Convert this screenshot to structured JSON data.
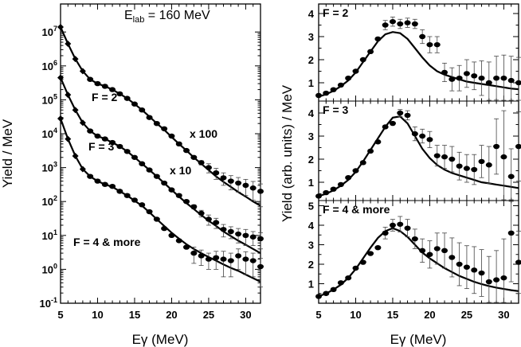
{
  "left_panel": {
    "title_main": "E",
    "title_sub": "lab",
    "title_rest": " = 160 MeV",
    "ylabel": "Yield / MeV",
    "xlabel": "Eγ (MeV)",
    "x_ticks": [
      "5",
      "10",
      "15",
      "20",
      "25",
      "30"
    ],
    "y_ticks": [
      {
        "base": "10",
        "exp": "7"
      },
      {
        "base": "10",
        "exp": "6"
      },
      {
        "base": "10",
        "exp": "5"
      },
      {
        "base": "10",
        "exp": "4"
      },
      {
        "base": "10",
        "exp": "3"
      },
      {
        "base": "10",
        "exp": "2"
      },
      {
        "base": "10",
        "exp": "1"
      },
      {
        "base": "10",
        "exp": "0"
      },
      {
        "base": "10",
        "exp": "-1"
      }
    ],
    "annotations": {
      "f2": "F = 2",
      "f3": "F = 3",
      "f4": "F = 4 & more",
      "x100": "x 100",
      "x10": "x 10"
    }
  },
  "right_panel": {
    "ylabel": "Yield (arb. units) / MeV",
    "xlabel": "Eγ (MeV)",
    "x_ticks": [
      "5",
      "10",
      "15",
      "20",
      "25",
      "30"
    ],
    "sub_titles": {
      "f2": "F = 2",
      "f3": "F = 3",
      "f4": "F = 4 & more"
    },
    "y_ticks_top": [
      "1",
      "2",
      "3",
      "4"
    ],
    "y_ticks_mid": [
      "1",
      "2",
      "3",
      "4"
    ],
    "y_ticks_bot": [
      "1",
      "2",
      "3",
      "4",
      "5"
    ]
  },
  "chart_data": [
    {
      "type": "scatter",
      "title": "Elab = 160 MeV",
      "xlabel": "Eγ (MeV)",
      "ylabel": "Yield / MeV",
      "xlim": [
        5,
        32
      ],
      "ylim": [
        0.1,
        30000000
      ],
      "yscale": "log",
      "series": [
        {
          "name": "F = 2",
          "x": [
            5,
            6,
            7,
            8,
            9,
            10,
            11,
            12,
            13,
            14,
            15,
            16,
            17,
            18,
            19,
            20,
            21,
            22,
            23,
            24,
            25,
            26,
            27,
            28,
            29,
            30,
            31,
            32
          ],
          "y": [
            14000000,
            4500000,
            1600000,
            700000,
            400000,
            300000,
            250000,
            200000,
            150000,
            110000,
            75000,
            50000,
            30000,
            20000,
            14000,
            8500,
            5000,
            3200,
            2000,
            1400,
            1000,
            700,
            500,
            400,
            350,
            300,
            250,
            200
          ],
          "err": [
            0,
            0,
            0,
            0,
            0,
            0,
            0,
            0,
            0,
            0,
            0,
            0,
            0,
            0,
            0,
            0,
            0,
            0,
            100,
            200,
            300,
            250,
            200,
            180,
            160,
            150,
            140,
            130
          ]
        },
        {
          "name": "F = 3",
          "x": [
            5,
            6,
            7,
            8,
            9,
            10,
            11,
            12,
            13,
            14,
            15,
            16,
            17,
            18,
            19,
            20,
            21,
            22,
            23,
            24,
            25,
            26,
            27,
            28,
            29,
            30,
            31,
            32
          ],
          "y": [
            450000,
            140000,
            50000,
            21000,
            12000,
            8500,
            7000,
            5500,
            4200,
            3000,
            2000,
            1300,
            850,
            550,
            350,
            220,
            150,
            100,
            70,
            45,
            30,
            24,
            15,
            13,
            11,
            10,
            9,
            8
          ],
          "err": [
            0,
            0,
            0,
            0,
            0,
            0,
            0,
            0,
            0,
            0,
            0,
            0,
            0,
            0,
            0,
            0,
            0,
            0,
            10,
            10,
            10,
            8,
            6,
            5,
            5,
            5,
            4,
            4
          ]
        },
        {
          "name": "F = 4 & more",
          "x": [
            5,
            6,
            7,
            8,
            9,
            10,
            11,
            12,
            13,
            14,
            15,
            16,
            17,
            18,
            19,
            20,
            21,
            22,
            23,
            24,
            25,
            26,
            27,
            28,
            29,
            30,
            31,
            32
          ],
          "y": [
            28000,
            7000,
            2200,
            900,
            550,
            400,
            320,
            280,
            200,
            150,
            110,
            80,
            50,
            30,
            16,
            10,
            7,
            4.5,
            3,
            2.5,
            2,
            2.2,
            2,
            1.8,
            2.5,
            2,
            1.8,
            1.2
          ],
          "err": [
            0,
            0,
            0,
            0,
            0,
            0,
            0,
            0,
            0,
            0,
            0,
            0,
            0,
            0,
            0,
            0,
            0,
            0,
            1.5,
            1.2,
            1,
            1.2,
            1.4,
            1.2,
            1.5,
            1.3,
            1.2,
            0.9
          ]
        }
      ],
      "fit_curves": [
        {
          "name": "F = 2",
          "x": [
            5,
            6,
            7,
            8,
            9,
            10,
            11,
            12,
            13,
            14,
            15,
            16,
            17,
            18,
            19,
            20,
            21,
            22,
            23,
            24,
            25,
            26,
            27,
            28,
            29,
            30,
            31,
            32
          ],
          "y": [
            14000000,
            4500000,
            1600000,
            700000,
            400000,
            300000,
            250000,
            200000,
            150000,
            110000,
            75000,
            50000,
            32000,
            20000,
            13000,
            8000,
            5000,
            3200,
            2000,
            1300,
            850,
            550,
            380,
            270,
            190,
            140,
            100,
            75
          ]
        },
        {
          "name": "F = 3",
          "x": [
            5,
            6,
            7,
            8,
            9,
            10,
            11,
            12,
            13,
            14,
            15,
            16,
            17,
            18,
            19,
            20,
            21,
            22,
            23,
            24,
            25,
            26,
            27,
            28,
            29,
            30,
            31,
            32
          ],
          "y": [
            450000,
            140000,
            50000,
            21000,
            12000,
            8500,
            7000,
            5500,
            4200,
            3000,
            2000,
            1300,
            850,
            550,
            350,
            220,
            140,
            90,
            60,
            40,
            27,
            19,
            13,
            9.5,
            7,
            5.3,
            4,
            3
          ]
        },
        {
          "name": "F = 4 & more",
          "x": [
            5,
            6,
            7,
            8,
            9,
            10,
            11,
            12,
            13,
            14,
            15,
            16,
            17,
            18,
            19,
            20,
            21,
            22,
            23,
            24,
            25,
            26,
            27,
            28,
            29,
            30,
            31,
            32
          ],
          "y": [
            28000,
            7000,
            2200,
            900,
            550,
            400,
            320,
            270,
            200,
            150,
            105,
            75,
            48,
            30,
            19,
            12,
            8,
            5.5,
            4,
            3,
            2.3,
            1.8,
            1.4,
            1.1,
            0.9,
            0.7,
            0.55,
            0.43
          ]
        }
      ]
    },
    {
      "type": "scatter",
      "title": "F = 2",
      "ylabel": "Yield (arb. units) / MeV",
      "xlim": [
        5,
        32
      ],
      "ylim": [
        0.5,
        4.6
      ],
      "x": [
        5,
        6,
        7,
        8,
        9,
        10,
        11,
        12,
        13,
        14,
        15,
        16,
        17,
        18,
        19,
        20,
        21,
        22,
        23,
        24,
        25,
        26,
        27,
        28,
        29,
        30,
        31,
        32
      ],
      "y": [
        0.45,
        0.55,
        0.7,
        0.9,
        1.2,
        1.5,
        2.0,
        2.35,
        2.9,
        3.5,
        3.65,
        3.55,
        3.6,
        3.55,
        3.0,
        2.65,
        2.65,
        1.45,
        1.15,
        1.2,
        1.4,
        1.3,
        1.2,
        1.0,
        1.2,
        1.2,
        1.1,
        1.0
      ],
      "err": [
        0,
        0,
        0,
        0,
        0,
        0,
        0,
        0,
        0,
        0.2,
        0.2,
        0.2,
        0.2,
        0.2,
        0.3,
        0.35,
        0.35,
        0.4,
        0.5,
        0.55,
        0.6,
        0.6,
        0.75,
        0.9,
        0.95,
        1.0,
        1.05,
        1.1
      ],
      "fit": {
        "x": [
          5,
          6,
          7,
          8,
          9,
          10,
          11,
          12,
          13,
          14,
          15,
          16,
          17,
          18,
          19,
          20,
          21,
          22,
          23,
          24,
          25,
          26,
          27,
          28,
          29,
          30,
          31,
          32
        ],
        "y": [
          0.4,
          0.5,
          0.65,
          0.85,
          1.1,
          1.45,
          1.9,
          2.35,
          2.8,
          3.1,
          3.2,
          3.15,
          2.9,
          2.5,
          2.1,
          1.75,
          1.5,
          1.35,
          1.25,
          1.15,
          1.05,
          1.0,
          0.95,
          0.9,
          0.85,
          0.8,
          0.75,
          0.72
        ]
      }
    },
    {
      "type": "scatter",
      "title": "F = 3",
      "ylabel": "Yield (arb. units) / MeV",
      "xlim": [
        5,
        32
      ],
      "ylim": [
        0.5,
        4.6
      ],
      "x": [
        5,
        6,
        7,
        8,
        9,
        10,
        11,
        12,
        13,
        14,
        15,
        16,
        17,
        18,
        19,
        20,
        21,
        22,
        23,
        24,
        25,
        26,
        27,
        28,
        29,
        30,
        31,
        32
      ],
      "y": [
        0.4,
        0.55,
        0.7,
        0.9,
        1.2,
        1.5,
        1.85,
        2.35,
        2.75,
        3.4,
        3.55,
        4.0,
        3.9,
        3.1,
        3.0,
        2.85,
        2.15,
        2.1,
        2.0,
        1.7,
        1.6,
        1.55,
        1.9,
        1.75,
        2.55,
        2.1,
        1.25,
        2.55
      ],
      "err": [
        0,
        0,
        0,
        0,
        0,
        0,
        0,
        0,
        0,
        0,
        0,
        0.15,
        0.2,
        0.3,
        0.3,
        0.35,
        0.45,
        0.5,
        0.55,
        0.6,
        0.6,
        0.65,
        0.7,
        0.8,
        1.2,
        2.0,
        1.2,
        1.5
      ],
      "fit": {
        "x": [
          5,
          6,
          7,
          8,
          9,
          10,
          11,
          12,
          13,
          14,
          15,
          16,
          17,
          18,
          19,
          20,
          21,
          22,
          23,
          24,
          25,
          26,
          27,
          28,
          29,
          30,
          31,
          32
        ],
        "y": [
          0.4,
          0.5,
          0.65,
          0.85,
          1.1,
          1.45,
          1.9,
          2.4,
          2.9,
          3.4,
          3.8,
          3.85,
          3.55,
          3.0,
          2.45,
          2.05,
          1.75,
          1.55,
          1.4,
          1.3,
          1.2,
          1.1,
          1.0,
          0.95,
          0.9,
          0.85,
          0.8,
          0.75
        ]
      }
    },
    {
      "type": "scatter",
      "title": "F = 4 & more",
      "ylabel": "Yield (arb. units) / MeV",
      "xlim": [
        5,
        32
      ],
      "ylim": [
        0.2,
        5.5
      ],
      "x": [
        5,
        6,
        7,
        8,
        9,
        10,
        11,
        12,
        13,
        14,
        15,
        16,
        17,
        18,
        19,
        20,
        21,
        22,
        23,
        24,
        25,
        26,
        27,
        28,
        29,
        30,
        31,
        32
      ],
      "y": [
        0.35,
        0.5,
        0.7,
        1.05,
        1.3,
        1.8,
        2.1,
        2.55,
        2.85,
        3.6,
        4.0,
        4.05,
        3.85,
        3.3,
        2.7,
        2.5,
        2.8,
        2.7,
        2.35,
        2.0,
        1.85,
        1.7,
        1.55,
        1.1,
        1.2,
        1.3,
        3.6,
        2.1
      ],
      "err": [
        0,
        0,
        0,
        0,
        0,
        0,
        0,
        0,
        0,
        0.3,
        0.3,
        0.4,
        0.45,
        0.5,
        0.6,
        0.7,
        0.8,
        0.9,
        1.0,
        1.1,
        1.1,
        1.2,
        1.2,
        1.3,
        1.5,
        2.0,
        2.5,
        1.6
      ],
      "fit": {
        "x": [
          5,
          6,
          7,
          8,
          9,
          10,
          11,
          12,
          13,
          14,
          15,
          16,
          17,
          18,
          19,
          20,
          21,
          22,
          23,
          24,
          25,
          26,
          27,
          28,
          29,
          30,
          31,
          32
        ],
        "y": [
          0.35,
          0.5,
          0.7,
          0.95,
          1.3,
          1.75,
          2.3,
          2.85,
          3.35,
          3.7,
          3.85,
          3.7,
          3.4,
          3.0,
          2.6,
          2.3,
          2.05,
          1.8,
          1.6,
          1.4,
          1.25,
          1.1,
          0.98,
          0.88,
          0.8,
          0.73,
          0.67,
          0.62
        ]
      }
    }
  ]
}
